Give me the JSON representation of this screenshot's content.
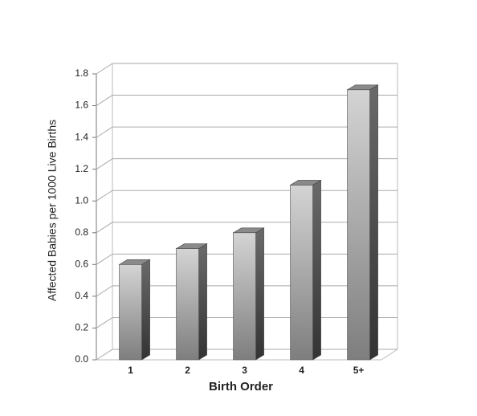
{
  "chart_data": {
    "type": "bar3d",
    "xlabel": "Birth Order",
    "ylabel": "Affected Babies per 1000 Live Births",
    "categories": [
      "1",
      "2",
      "3",
      "4",
      "5+"
    ],
    "values": [
      0.6,
      0.7,
      0.8,
      1.1,
      1.7
    ],
    "color": "#9a9a9a",
    "ylim": [
      0,
      1.8
    ],
    "yticks": [
      {
        "value": 0,
        "label": "0.0"
      },
      0.2,
      0.4,
      0.6,
      0.8,
      {
        "value": 1,
        "label": "1.0"
      },
      1.2,
      1.4,
      1.6,
      1.8
    ],
    "grid": true
  }
}
